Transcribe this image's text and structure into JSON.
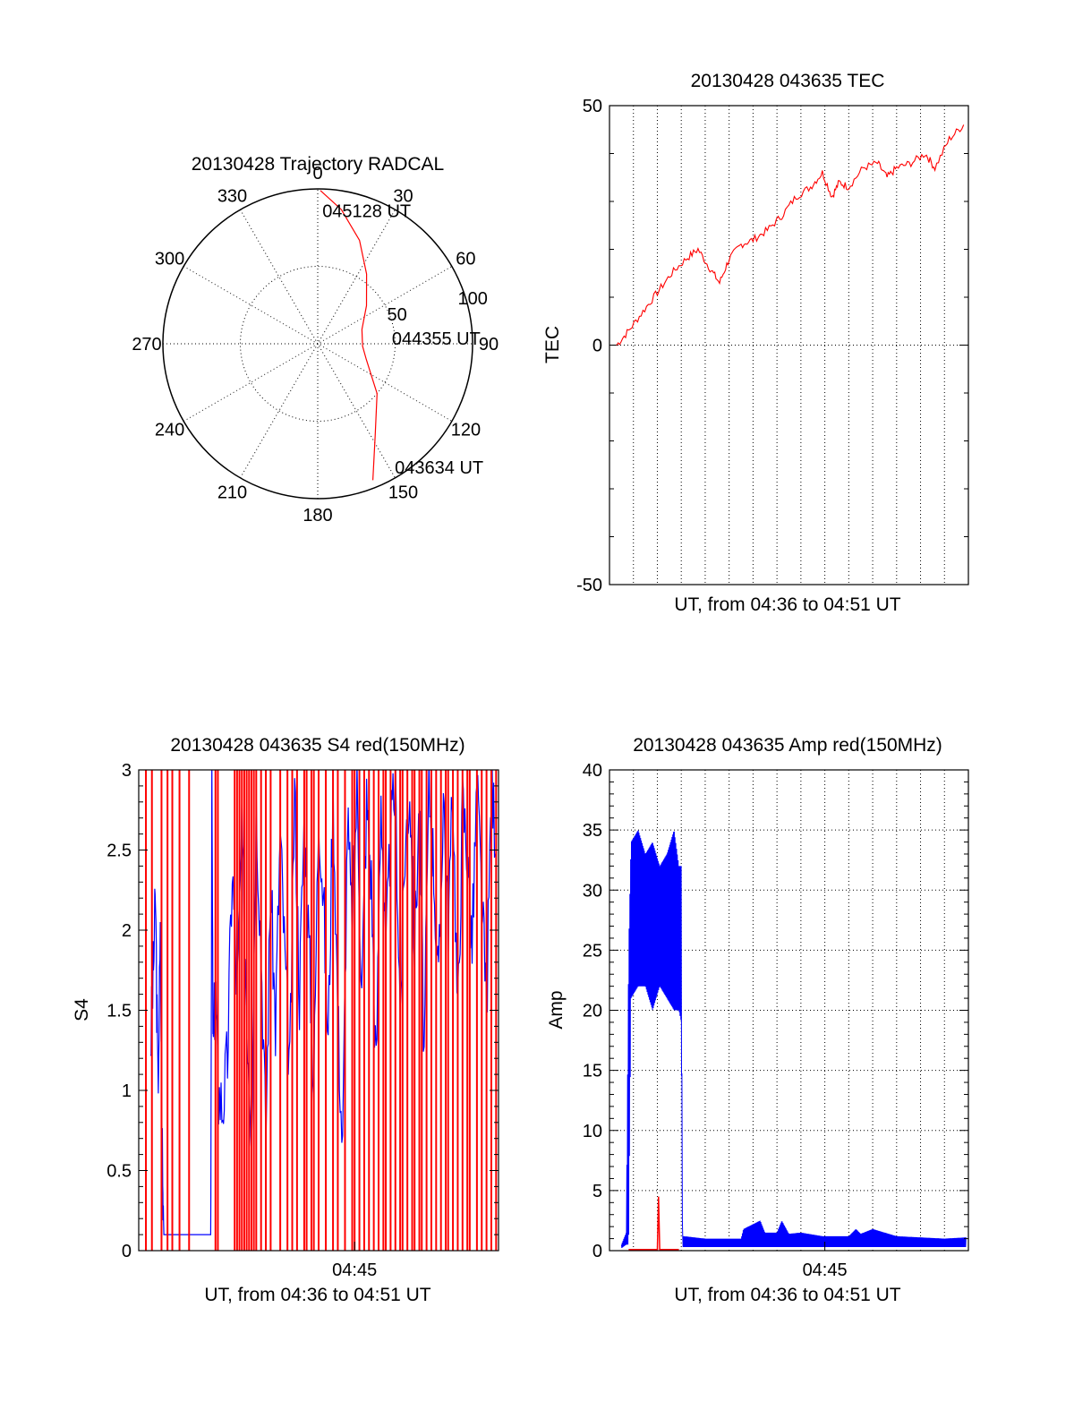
{
  "colors": {
    "red": "#ff0000",
    "blue": "#0000ff",
    "axis": "#000000",
    "grid": "#000000"
  },
  "chart_data": [
    {
      "id": "trajectory",
      "type": "polar",
      "title": "20130428 Trajectory RADCAL",
      "angle_labels": [
        "0",
        "30",
        "60",
        "90",
        "120",
        "150",
        "180",
        "210",
        "240",
        "270",
        "300",
        "330"
      ],
      "radius_labels": [
        "50",
        "100"
      ],
      "radius_max": 100,
      "grid": true,
      "series": [
        {
          "color": "red",
          "points": [
            {
              "az": 158,
              "r": 95
            },
            {
              "az": 148,
              "r": 70
            },
            {
              "az": 130,
              "r": 50
            },
            {
              "az": 108,
              "r": 33
            },
            {
              "az": 93,
              "r": 29
            },
            {
              "az": 72,
              "r": 30
            },
            {
              "az": 52,
              "r": 40
            },
            {
              "az": 35,
              "r": 55
            },
            {
              "az": 22,
              "r": 72
            },
            {
              "az": 10,
              "r": 88
            },
            {
              "az": 1,
              "r": 99
            }
          ]
        }
      ],
      "annotations": [
        {
          "text": "045128 UT",
          "az": 2,
          "r": 86
        },
        {
          "text": "044355 UT",
          "az": 86,
          "r": 48
        },
        {
          "text": "043634 UT",
          "az": 148,
          "r": 94
        }
      ]
    },
    {
      "id": "tec",
      "type": "line",
      "title": "20130428 043635 TEC",
      "xlabel": "UT, from 04:36 to 04:51 UT",
      "ylabel": "TEC",
      "xlim": [
        0,
        15
      ],
      "ylim": [
        -50,
        50
      ],
      "yticks": [
        "50",
        "0",
        "-50"
      ],
      "xticks": [],
      "grid": true,
      "series": [
        {
          "color": "red",
          "x": [
            0.3,
            0.8,
            1.4,
            2.0,
            2.6,
            3.2,
            3.7,
            4.2,
            4.6,
            5.0,
            5.5,
            6.0,
            6.6,
            7.2,
            7.8,
            8.4,
            8.9,
            9.3,
            9.6,
            10.0,
            10.6,
            11.2,
            11.6,
            12.0,
            12.6,
            13.2,
            13.6,
            14.2,
            14.8
          ],
          "y": [
            0,
            3,
            7,
            11,
            15,
            18,
            20,
            16,
            13,
            18,
            21,
            22,
            24,
            27,
            31,
            33,
            36,
            31,
            34,
            33,
            37,
            38,
            35,
            37,
            38,
            40,
            37,
            43,
            46
          ]
        }
      ]
    },
    {
      "id": "s4",
      "type": "line",
      "title": "20130428 043635 S4 red(150MHz)",
      "xlabel": "UT, from 04:36 to 04:51 UT",
      "ylabel": "S4",
      "xlim": [
        0,
        15
      ],
      "ylim": [
        0,
        3
      ],
      "yticks": [
        "0",
        "0.5",
        "1",
        "1.5",
        "2",
        "2.5",
        "3"
      ],
      "xticks": [
        {
          "label": "04:45",
          "x": 9
        }
      ],
      "grid": false,
      "series": [
        {
          "name": "",
          "color": "blue",
          "x": [
            0.5,
            0.6,
            0.7,
            0.8,
            0.9,
            1.0,
            1.05,
            1.1,
            1.6,
            2.1,
            2.6,
            3.0,
            3.05,
            3.1,
            3.2,
            3.3,
            3.5,
            3.7,
            3.9,
            4.1,
            4.3,
            4.5,
            4.7,
            4.9,
            5.1,
            5.3,
            5.5,
            5.7,
            5.9,
            6.1,
            6.3,
            6.5,
            6.7,
            6.9,
            7.1,
            7.3,
            7.5,
            7.7,
            7.9,
            8.1,
            8.3,
            8.5,
            8.7,
            8.9,
            9.1,
            9.3,
            9.5,
            9.7,
            9.9,
            10.1,
            10.3,
            10.5,
            10.7,
            10.9,
            11.1,
            11.3,
            11.5,
            11.7,
            11.9,
            12.1,
            12.3,
            12.5,
            12.7,
            12.9,
            13.1,
            13.3,
            13.5,
            13.7,
            13.9,
            14.1,
            14.3,
            14.5,
            14.7,
            14.9
          ],
          "y": [
            1.3,
            1.7,
            2.2,
            1.0,
            1.9,
            0.4,
            0.1,
            0.1,
            0.1,
            0.1,
            0.1,
            0.1,
            2.9,
            1.2,
            1.7,
            1.0,
            0.9,
            1.2,
            2.4,
            1.6,
            2.6,
            1.5,
            0.8,
            2.8,
            1.9,
            0.7,
            2.3,
            1.4,
            2.6,
            1.8,
            1.1,
            2.9,
            1.6,
            2.7,
            1.9,
            1.0,
            2.8,
            2.2,
            1.3,
            2.9,
            1.5,
            0.6,
            2.7,
            2.0,
            2.9,
            1.6,
            2.8,
            2.3,
            1.1,
            2.9,
            1.8,
            2.6,
            2.9,
            1.5,
            2.5,
            2.9,
            1.9,
            2.8,
            1.2,
            2.9,
            2.4,
            1.6,
            2.9,
            2.0,
            2.9,
            1.4,
            2.8,
            2.5,
            1.9,
            2.9,
            2.2,
            1.5,
            2.9,
            2.6
          ]
        },
        {
          "name": "",
          "color": "red",
          "spikes": [
            0.3,
            0.55,
            0.95,
            1.2,
            1.4,
            1.7,
            2.1,
            3.2,
            3.3,
            4.0,
            4.1,
            4.2,
            4.3,
            4.4,
            4.5,
            4.6,
            4.7,
            4.8,
            4.9,
            5.1,
            5.3,
            5.5,
            5.9,
            6.2,
            6.4,
            6.6,
            6.9,
            7.0,
            7.2,
            7.3,
            7.5,
            7.8,
            8.1,
            8.3,
            8.6,
            8.9,
            9.0,
            9.2,
            9.4,
            9.6,
            9.8,
            10.0,
            10.2,
            10.3,
            10.5,
            10.7,
            10.9,
            11.0,
            11.2,
            11.4,
            11.5,
            11.7,
            11.8,
            12.0,
            12.2,
            12.4,
            12.6,
            12.8,
            12.9,
            13.1,
            13.3,
            13.5,
            13.7,
            13.8,
            14.1,
            14.3,
            14.5,
            14.7,
            14.9
          ]
        }
      ]
    },
    {
      "id": "amp",
      "type": "line",
      "title": "20130428 043635 Amp red(150MHz)",
      "xlabel": "UT, from 04:36 to 04:51 UT",
      "ylabel": "Amp",
      "xlim": [
        0,
        15
      ],
      "ylim": [
        0,
        40
      ],
      "yticks": [
        "0",
        "5",
        "10",
        "15",
        "20",
        "25",
        "30",
        "35",
        "40"
      ],
      "xticks": [
        {
          "label": "04:45",
          "x": 9
        }
      ],
      "grid": true,
      "series": [
        {
          "name": "",
          "color": "blue",
          "envelope": {
            "x": [
              0.5,
              0.7,
              0.8,
              0.9,
              1.2,
              1.5,
              1.8,
              2.1,
              2.4,
              2.7,
              2.9,
              3.0,
              3.05,
              3.1,
              4.0,
              5.0,
              5.5,
              5.6,
              6.3,
              6.5,
              7.0,
              7.2,
              7.5,
              8.0,
              8.9,
              9.0,
              10.0,
              10.3,
              10.5,
              11.0,
              12.0,
              14.0,
              14.9
            ],
            "upper": [
              0.5,
              1.5,
              25,
              34,
              35,
              33,
              34,
              32,
              33,
              35,
              32,
              32,
              1.2,
              1.2,
              1.0,
              1.0,
              1.0,
              1.8,
              2.5,
              1.5,
              1.5,
              2.5,
              1.4,
              1.5,
              1.2,
              1.2,
              1.2,
              1.8,
              1.4,
              1.8,
              1.2,
              1.0,
              1.1
            ],
            "lower": [
              0.2,
              0.5,
              0.5,
              21,
              22,
              22,
              20,
              22,
              21,
              20,
              20,
              19,
              0.3,
              0.3,
              0.3,
              0.3,
              0.3,
              0.3,
              0.3,
              0.3,
              0.3,
              0.3,
              0.3,
              0.3,
              0.3,
              0.3,
              0.3,
              0.3,
              0.3,
              0.3,
              0.3,
              0.3,
              0.3
            ]
          }
        },
        {
          "name": "",
          "color": "red",
          "x": [
            0.8,
            2.0,
            2.05,
            2.1,
            2.9
          ],
          "y": [
            0.1,
            0.1,
            4.5,
            0.1,
            0.1
          ]
        }
      ]
    }
  ]
}
